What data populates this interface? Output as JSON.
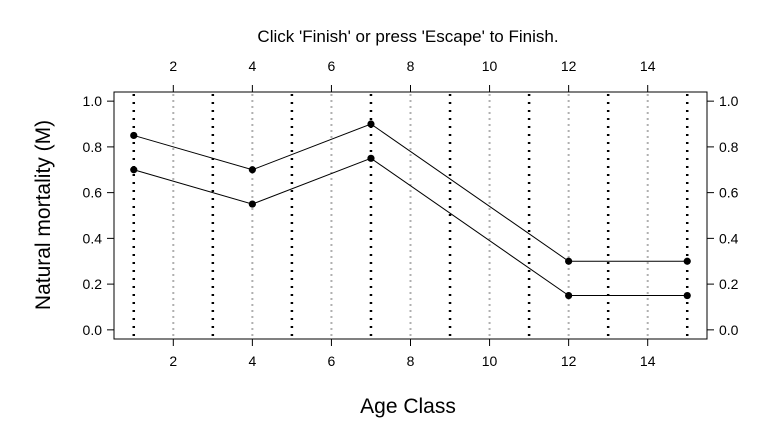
{
  "prompt_text": "Click 'Finish' or press 'Escape' to Finish.",
  "chart_data": {
    "type": "line",
    "title": "",
    "xlabel": "Age Class",
    "ylabel": "Natural mortality (M)",
    "xlim": [
      0.5,
      15.5
    ],
    "ylim": [
      -0.04,
      1.04
    ],
    "x_ticks": [
      2,
      4,
      6,
      8,
      10,
      12,
      14
    ],
    "y_ticks": [
      0.0,
      0.2,
      0.4,
      0.6,
      0.8,
      1.0
    ],
    "x_tick_labels": [
      "2",
      "4",
      "6",
      "8",
      "10",
      "12",
      "14"
    ],
    "y_tick_labels": [
      "0.0",
      "0.2",
      "0.4",
      "0.6",
      "0.8",
      "1.0"
    ],
    "vertical_gridlines": {
      "dotted_black_at": [
        1,
        3,
        5,
        7,
        9,
        11,
        13,
        15
      ],
      "dotted_gray_at": [
        2,
        4,
        6,
        8,
        10,
        12,
        14
      ]
    },
    "series": [
      {
        "x": [
          1,
          4,
          7,
          12,
          15
        ],
        "values": [
          0.85,
          0.7,
          0.9,
          0.3,
          0.3
        ]
      },
      {
        "x": [
          1,
          4,
          7,
          12,
          15
        ],
        "values": [
          0.7,
          0.55,
          0.75,
          0.15,
          0.15
        ]
      }
    ],
    "colors": {
      "line": "#000000",
      "grid_black": "#000000",
      "grid_gray": "#b0b0b0",
      "axis": "#000000"
    }
  }
}
